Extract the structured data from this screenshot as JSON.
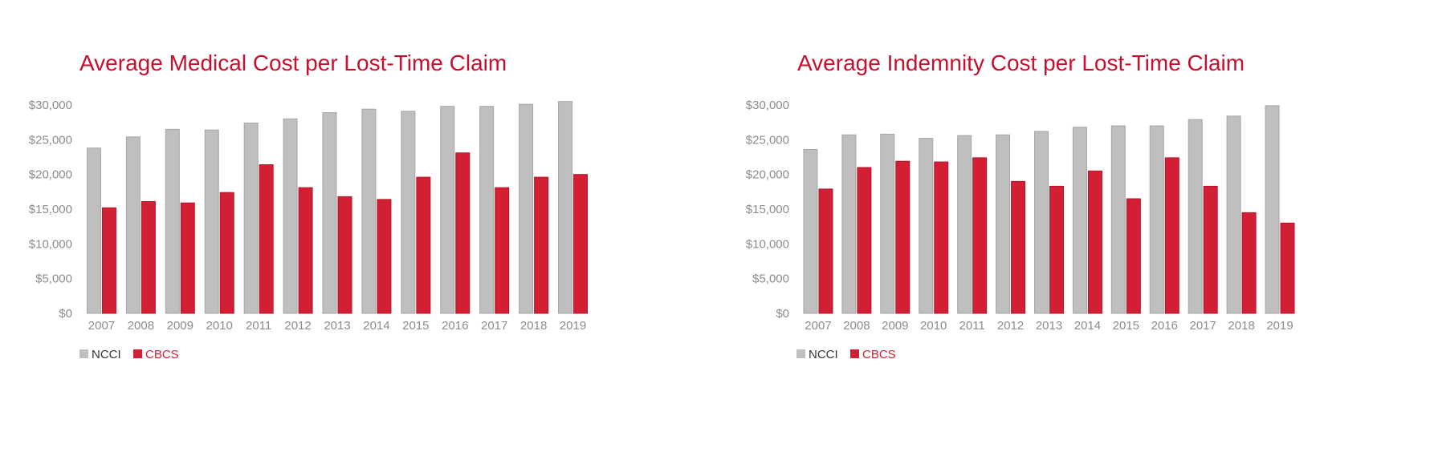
{
  "colors": {
    "ncci": "#bfbfbf",
    "ncci_stroke": "#a6a6a6",
    "cbcs": "#d21f34",
    "cbcs_stroke": "#b3172a",
    "title": "#c8102e",
    "tick_text": "#8c8c8c",
    "legend_ncci_text": "#333333",
    "legend_cbcs_text": "#d21f34"
  },
  "chart_data": [
    {
      "type": "bar",
      "title": "Average Medical Cost per Lost-Time Claim",
      "categories": [
        "2007",
        "2008",
        "2009",
        "2010",
        "2011",
        "2012",
        "2013",
        "2014",
        "2015",
        "2016",
        "2017",
        "2018",
        "2019"
      ],
      "series": [
        {
          "name": "NCCI",
          "values": [
            23800,
            25400,
            26500,
            26400,
            27400,
            28000,
            28900,
            29400,
            29100,
            29800,
            29800,
            30100,
            30500
          ]
        },
        {
          "name": "CBCS",
          "values": [
            15200,
            16100,
            15900,
            17400,
            21400,
            18100,
            16800,
            16400,
            19600,
            23100,
            18100,
            19600,
            20000
          ]
        }
      ],
      "ylim": [
        0,
        30000
      ],
      "yticks": [
        "$0",
        "$5,000",
        "$10,000",
        "$15,000",
        "$20,000",
        "$25,000",
        "$30,000"
      ],
      "ytick_values": [
        0,
        5000,
        10000,
        15000,
        20000,
        25000,
        30000
      ],
      "legend": "bottom-left",
      "grid": false
    },
    {
      "type": "bar",
      "title": "Average Indemnity Cost per Lost-Time Claim",
      "categories": [
        "2007",
        "2008",
        "2009",
        "2010",
        "2011",
        "2012",
        "2013",
        "2014",
        "2015",
        "2016",
        "2017",
        "2018",
        "2019"
      ],
      "series": [
        {
          "name": "NCCI",
          "values": [
            23600,
            25700,
            25800,
            25200,
            25600,
            25700,
            26200,
            26800,
            27000,
            27000,
            27900,
            28400,
            29900
          ]
        },
        {
          "name": "CBCS",
          "values": [
            17900,
            21000,
            21900,
            21800,
            22400,
            19000,
            18300,
            20500,
            16500,
            22400,
            18300,
            14500,
            13000
          ]
        }
      ],
      "ylim": [
        0,
        30000
      ],
      "yticks": [
        "$0",
        "$5,000",
        "$10,000",
        "$15,000",
        "$20,000",
        "$25,000",
        "$30,000"
      ],
      "ytick_values": [
        0,
        5000,
        10000,
        15000,
        20000,
        25000,
        30000
      ],
      "legend": "bottom-left",
      "grid": false
    }
  ]
}
